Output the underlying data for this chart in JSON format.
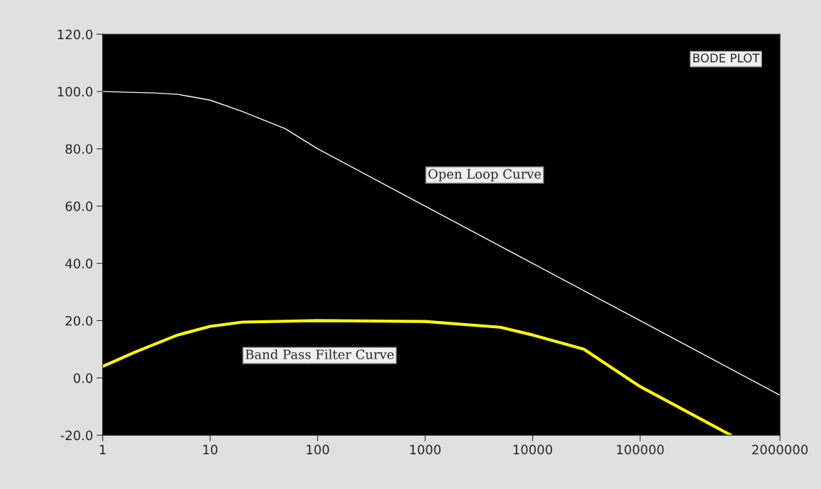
{
  "chart_data": {
    "type": "line",
    "annotations": [
      "BODE PLOT"
    ],
    "x": [
      1,
      3,
      5,
      10,
      20,
      50,
      100,
      1000,
      10000,
      100000,
      2000000
    ],
    "xlim": [
      1,
      2000000
    ],
    "xticks": [
      1,
      10,
      100,
      1000,
      10000,
      100000,
      2000000
    ],
    "ylim": [
      -20,
      120
    ],
    "yticks": [
      {
        "value": -20,
        "label": "-20.0"
      },
      {
        "value": 0,
        "label": "0.0"
      },
      {
        "value": 20,
        "label": "20.0"
      },
      {
        "value": 40,
        "label": "40.0"
      },
      {
        "value": 60,
        "label": "60.0"
      },
      {
        "value": 80,
        "label": "80.0"
      },
      {
        "value": 100,
        "label": "100.0"
      },
      {
        "value": 120,
        "label": "120.0"
      }
    ],
    "log": "x",
    "grid": false,
    "legend": false,
    "series": [
      {
        "name": "Open Loop Curve",
        "color": "#ffffff",
        "values": [
          100,
          99.5,
          99,
          97,
          93,
          87,
          80,
          60,
          40,
          20,
          -6
        ]
      },
      {
        "name": "Band Pass Filter Curve",
        "color": "#ffff00",
        "x": [
          1,
          2,
          5,
          10,
          20,
          100,
          1000,
          5000,
          10000,
          30000,
          100000,
          700000
        ],
        "values": [
          4,
          9,
          15,
          18,
          19.5,
          20,
          19.7,
          17.7,
          15,
          10,
          -3,
          -20
        ]
      }
    ]
  }
}
